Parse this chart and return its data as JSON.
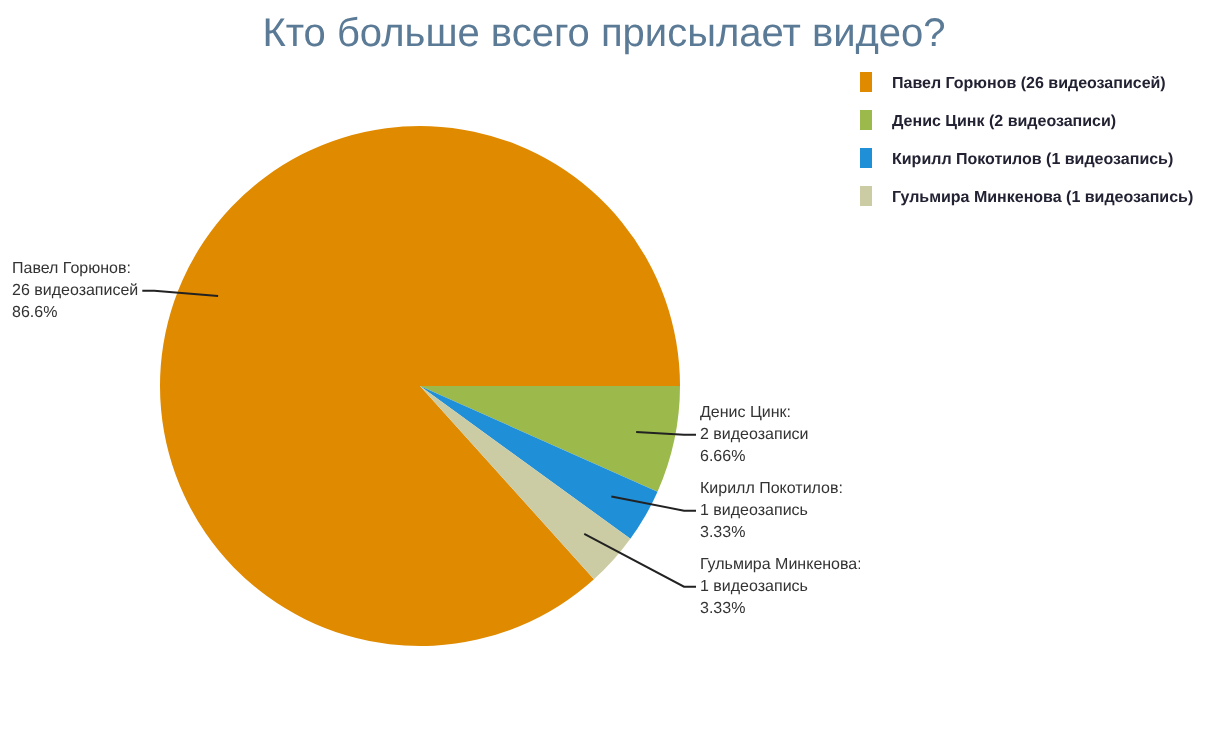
{
  "chart_data": {
    "type": "pie",
    "title": "Кто больше всего присылает видео?",
    "categories": [
      "Павел Горюнов (26 видеозаписей)",
      "Денис Цинк (2 видеозаписи)",
      "Кирилл Покотилов (1 видеозапись)",
      "Гульмира Минкенова (1 видеозапись)"
    ],
    "values": [
      26,
      2,
      1,
      1
    ],
    "colors": [
      "#e08a00",
      "#9cba4c",
      "#1f8fd8",
      "#cccca4"
    ],
    "value_labels": [
      "Павел Горюнов:\n26 видеозаписей\n86.6%",
      "Денис Цинк:\n2 видеозаписи\n6.66%",
      "Кирилл Покотилов:\n1 видеозапись\n3.33%",
      "Гульмира Минкенова:\n1 видеозапись\n3.33%"
    ],
    "legend": "top right"
  }
}
